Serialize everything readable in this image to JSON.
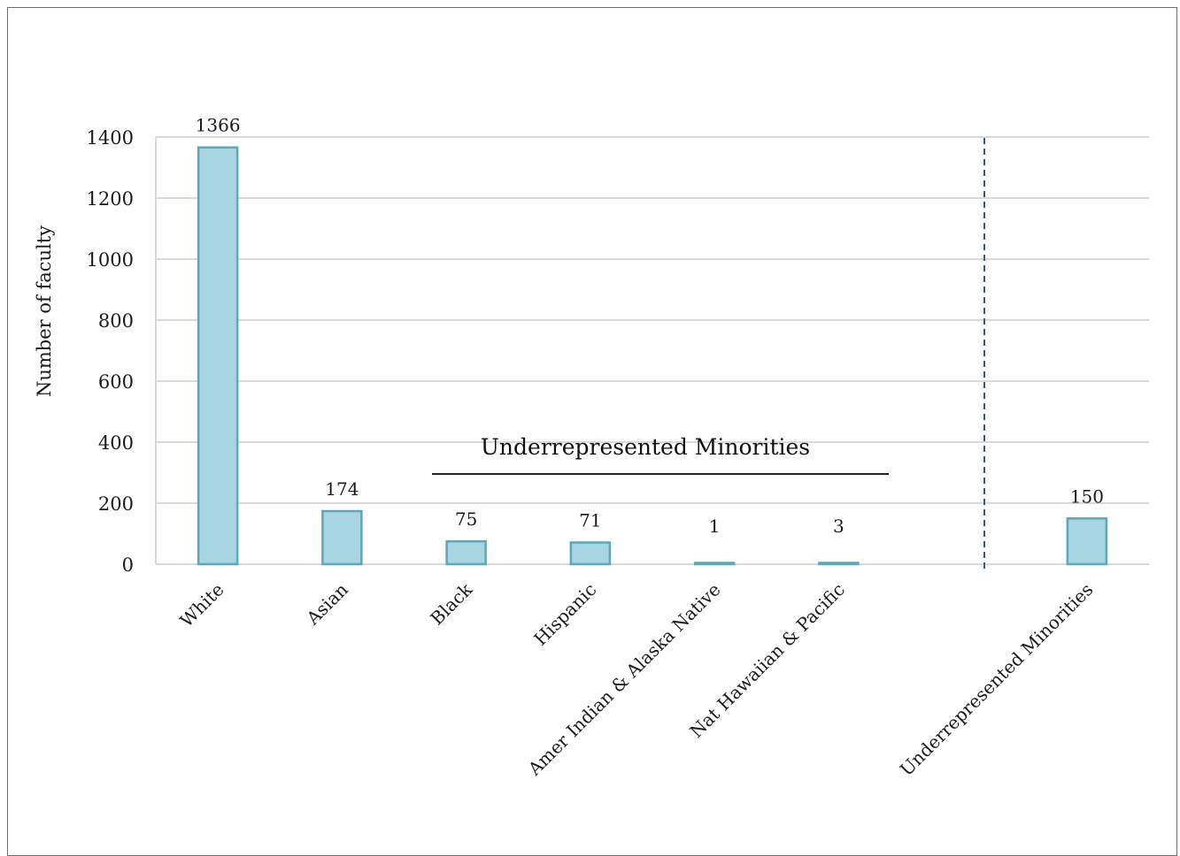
{
  "chart_data": {
    "type": "bar",
    "title": "",
    "xlabel": "",
    "ylabel": "Number of faculty",
    "ylim": [
      0,
      1400
    ],
    "yticks": [
      "0",
      "200",
      "400",
      "600",
      "800",
      "1000",
      "1200",
      "1400"
    ],
    "grid": true,
    "legend": "none",
    "categories": [
      "White",
      "Asian",
      "Black",
      "Hispanic",
      "Amer Indian & Alaska Native",
      "Nat Hawaiian & Pacific",
      "",
      "Underrepresented Minorities"
    ],
    "values": [
      1366,
      174,
      75,
      71,
      1,
      3,
      null,
      150
    ],
    "data_labels": [
      "1366",
      "174",
      "75",
      "71",
      "1",
      "3",
      "",
      "150"
    ],
    "annotations": {
      "group_label": "Underrepresented Minorities",
      "group_span": [
        "Black",
        "Nat Hawaiian & Pacific"
      ],
      "separator": "dashed vertical line before Underrepresented Minorities"
    },
    "colors": {
      "bar_fill": "#a8d5e2",
      "bar_stroke": "#5aa9b8",
      "grid": "#d9d9d9",
      "separator": "#2e5d8a"
    }
  }
}
